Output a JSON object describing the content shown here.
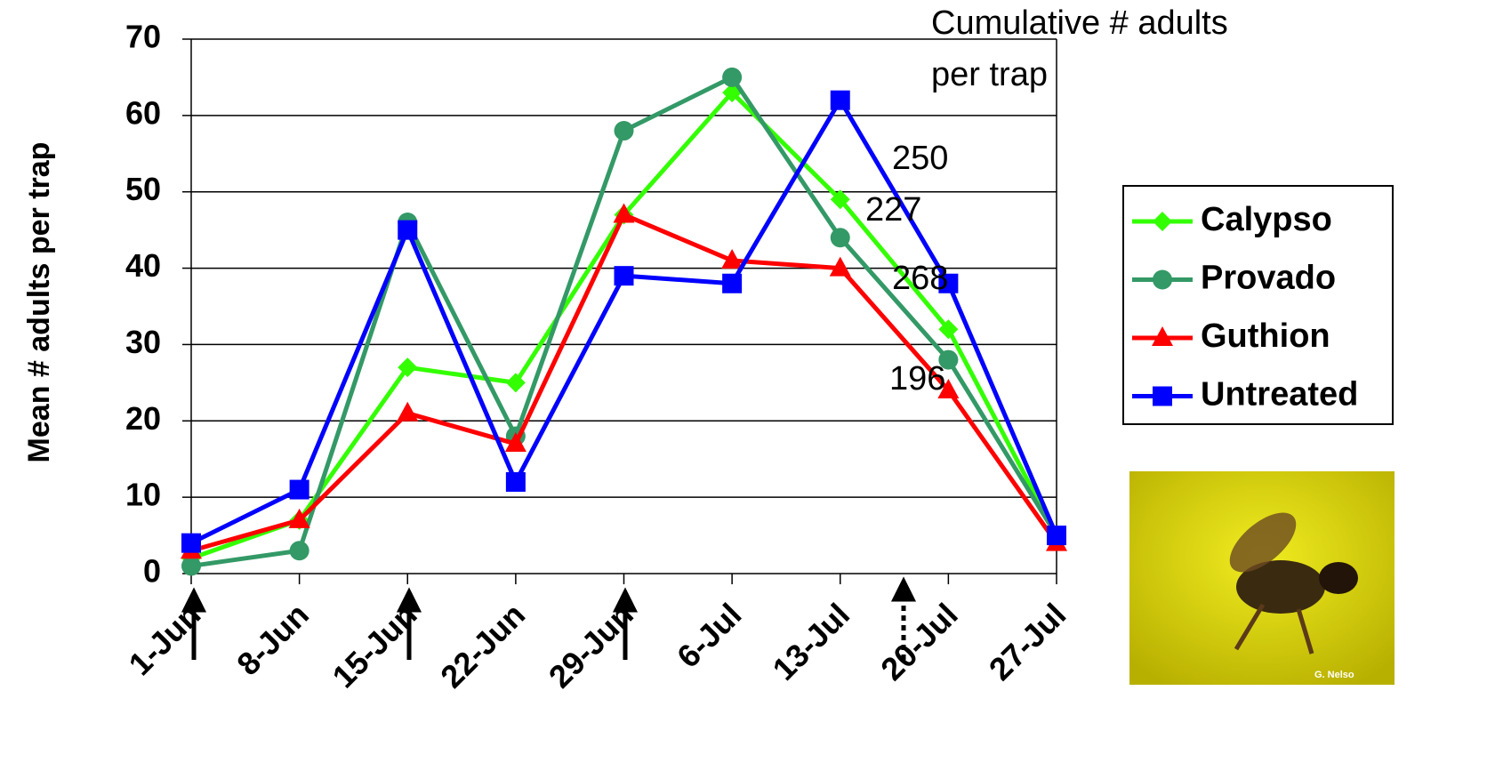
{
  "chart_data": {
    "type": "line",
    "y_label": "Mean # adults per trap",
    "annotation_title": [
      "Cumulative # adults",
      "per trap"
    ],
    "cumulative_labels": [
      250,
      227,
      268,
      196
    ],
    "photo_credit": "G. Nelso",
    "x": [
      "1-Jun",
      "8-Jun",
      "15-Jun",
      "22-Jun",
      "29-Jun",
      "6-Jul",
      "13-Jul",
      "20-Jul",
      "27-Jul"
    ],
    "xlim": [
      "1-Jun",
      "27-Jul"
    ],
    "xticks": [
      "1-Jun",
      "8-Jun",
      "15-Jun",
      "22-Jun",
      "29-Jun",
      "6-Jul",
      "13-Jul",
      "20-Jul",
      "27-Jul"
    ],
    "ylim": [
      0,
      70
    ],
    "yticks": [
      0,
      10,
      20,
      30,
      40,
      50,
      60,
      70
    ],
    "grid": true,
    "legend": "right",
    "series": [
      {
        "name": "Calypso",
        "color": "#33ff00",
        "marker": "diamond",
        "values": [
          2,
          7,
          27,
          25,
          47,
          63,
          49,
          32,
          5
        ]
      },
      {
        "name": "Provado",
        "color": "#339966",
        "marker": "circle",
        "values": [
          1,
          3,
          46,
          18,
          58,
          65,
          44,
          28,
          5
        ]
      },
      {
        "name": "Guthion",
        "color": "#ff0000",
        "marker": "triangle",
        "values": [
          3,
          7,
          21,
          17,
          47,
          41,
          40,
          24,
          4
        ]
      },
      {
        "name": "Untreated",
        "color": "#0000ff",
        "marker": "square",
        "values": [
          4,
          11,
          45,
          12,
          39,
          38,
          62,
          38,
          5
        ]
      }
    ]
  }
}
